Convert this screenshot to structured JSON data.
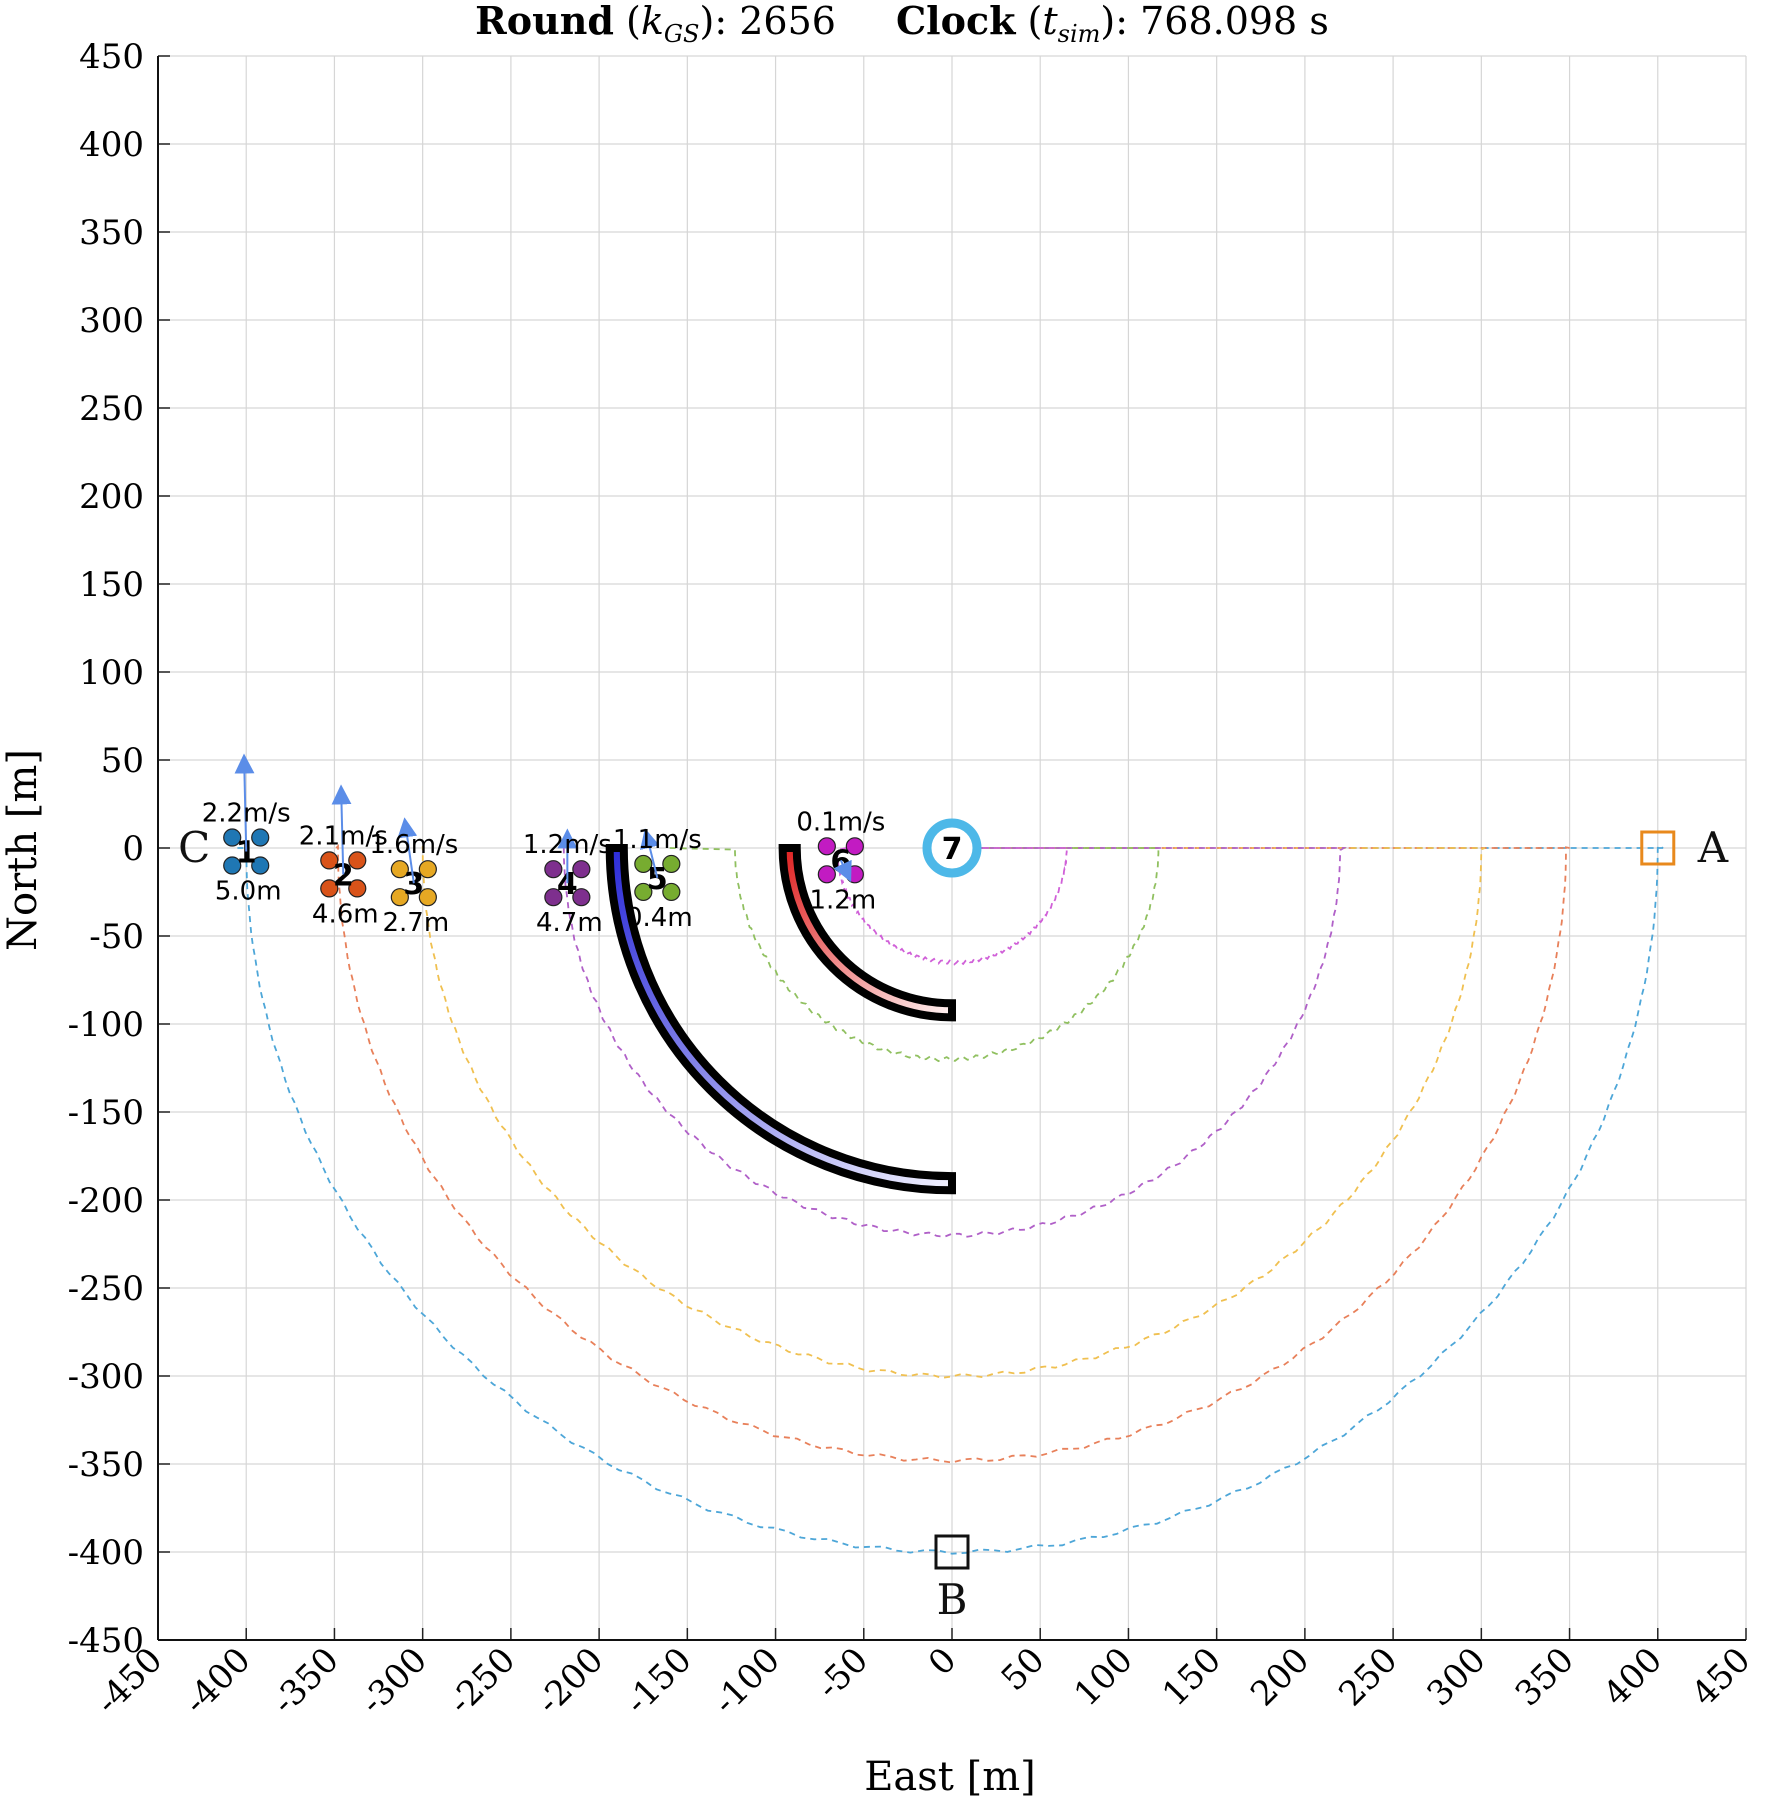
{
  "title": {
    "round_label": "Round",
    "round_symbol": "k",
    "round_subscript": "GS",
    "round_value": "2656",
    "clock_label": "Clock",
    "clock_symbol": "t",
    "clock_subscript": "sim",
    "clock_value": "768.098 s"
  },
  "chart_data": {
    "type": "scatter",
    "xlabel": "East [m]",
    "ylabel": "North [m]",
    "xlim": [
      -450,
      450
    ],
    "ylim": [
      -450,
      450
    ],
    "x_ticks": [
      -450,
      -400,
      -350,
      -300,
      -250,
      -200,
      -150,
      -100,
      -50,
      0,
      50,
      100,
      150,
      200,
      250,
      300,
      350,
      400,
      450
    ],
    "y_ticks": [
      450,
      400,
      350,
      300,
      250,
      200,
      150,
      100,
      50,
      0,
      -50,
      -100,
      -150,
      -200,
      -250,
      -300,
      -350,
      -400,
      -450
    ],
    "grid": true,
    "waypoints": [
      {
        "label": "A",
        "x": 400,
        "y": 0,
        "color": "#e8891c"
      },
      {
        "label": "B",
        "x": 0,
        "y": -400,
        "color": "#111111"
      },
      {
        "label": "C",
        "x": -400,
        "y": 0,
        "color": "#111111"
      }
    ],
    "drones": [
      {
        "id": "1",
        "x": -400,
        "y": -2,
        "speed": "2.2m/s",
        "dist": "5.0m",
        "color": "#1f77b4",
        "vx": -2,
        "vy": 55
      },
      {
        "id": "2",
        "x": -345,
        "y": -15,
        "speed": "2.1m/s",
        "dist": "4.6m",
        "color": "#d95319",
        "vx": -2,
        "vy": 50
      },
      {
        "id": "3",
        "x": -305,
        "y": -20,
        "speed": "1.6m/s",
        "dist": "2.7m",
        "color": "#e6a823",
        "vx": -8,
        "vy": 35
      },
      {
        "id": "4",
        "x": -218,
        "y": -20,
        "speed": "1.2m/s",
        "dist": "4.7m",
        "color": "#7e2f8e",
        "vx": 0,
        "vy": 28
      },
      {
        "id": "5",
        "x": -167,
        "y": -17,
        "speed": "1.1m/s",
        "dist": "0.4m",
        "color": "#77ac30",
        "vx": -10,
        "vy": 25
      },
      {
        "id": "6",
        "x": -63,
        "y": -7,
        "speed": "0.1m/s",
        "dist": "1.2m",
        "color": "#c21bc2",
        "vx": 6,
        "vy": -8
      }
    ],
    "ground_station": {
      "id": "7",
      "x": 0,
      "y": 0,
      "color": "#4db8e8"
    },
    "trajectories": [
      {
        "color": "#4da6d8",
        "r": 400,
        "cx": 0,
        "cy": 0,
        "x_start": -405,
        "x_end": 403
      },
      {
        "color": "#e8805a",
        "r": 348,
        "cx": 0,
        "cy": 0,
        "x_start": -349,
        "x_end": 350
      },
      {
        "color": "#f0c050",
        "r": 300,
        "cx": 0,
        "cy": 0,
        "x_start": -300,
        "x_end": 302
      },
      {
        "color": "#b060c8",
        "r": 220,
        "cx": 0,
        "cy": 0,
        "x_start": -220,
        "x_end": 222
      },
      {
        "color": "#90c060",
        "r": 120,
        "cx": -3,
        "cy": 0,
        "x_start": -160,
        "x_end": 116
      },
      {
        "color": "#d060d8",
        "r": 65,
        "cx": 0,
        "cy": 0,
        "x_start": -60,
        "x_end": 65
      }
    ],
    "arc_bars": [
      {
        "r": 190,
        "from_deg": 180,
        "to_deg": 270,
        "width": 8,
        "color_start": "#2c2cd8",
        "color_end": "#f0f0ff"
      },
      {
        "r": 92,
        "from_deg": 180,
        "to_deg": 270,
        "width": 8,
        "color_start": "#e02020",
        "color_end": "#fff0f0"
      }
    ]
  }
}
